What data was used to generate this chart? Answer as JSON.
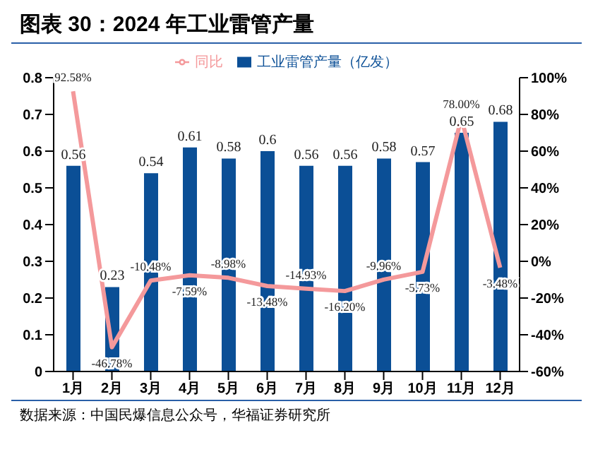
{
  "chart_data": {
    "type": "bar",
    "title": "图表 30：2024 年工业雷管产量",
    "categories": [
      "1月",
      "2月",
      "3月",
      "4月",
      "5月",
      "6月",
      "7月",
      "8月",
      "9月",
      "10月",
      "11月",
      "12月"
    ],
    "series": [
      {
        "name": "工业雷管产量（亿发）",
        "color": "#0b4f96",
        "values": [
          0.56,
          0.23,
          0.54,
          0.61,
          0.58,
          0.6,
          0.56,
          0.56,
          0.58,
          0.57,
          0.65,
          0.68
        ],
        "value_labels": [
          "0.56",
          "0.23",
          "0.54",
          "0.61",
          "0.58",
          "0.6",
          "0.56",
          "0.56",
          "0.58",
          "0.57",
          "0.65",
          "0.68"
        ]
      },
      {
        "name": "同比",
        "type": "line",
        "axis": "y2",
        "color": "#f4999b",
        "values": [
          92.58,
          -46.78,
          -10.48,
          -7.59,
          -8.98,
          -13.48,
          -14.93,
          -16.2,
          -9.96,
          -5.73,
          78.0,
          -3.48
        ],
        "value_labels": [
          "92.58%",
          "-46.78%",
          "-10.48%",
          "-7.59%",
          "-8.98%",
          "-13.48%",
          "-14.93%",
          "-16.20%",
          "-9.96%",
          "-5.73%",
          "78.00%",
          "-3.48%"
        ]
      }
    ],
    "ylim": [
      0,
      0.8
    ],
    "yticks": [
      0,
      0.1,
      0.2,
      0.3,
      0.4,
      0.5,
      0.6,
      0.7,
      0.8
    ],
    "y2lim": [
      -60,
      100
    ],
    "y2ticks": [
      {
        "value": -60,
        "label": "-60%"
      },
      {
        "value": -40,
        "label": "-40%"
      },
      {
        "value": -20,
        "label": "-20%"
      },
      {
        "value": 0,
        "label": "0%"
      },
      {
        "value": 20,
        "label": "20%"
      },
      {
        "value": 40,
        "label": "40%"
      },
      {
        "value": 60,
        "label": "60%"
      },
      {
        "value": 80,
        "label": "80%"
      },
      {
        "value": 100,
        "label": "100%"
      }
    ],
    "legend": "top",
    "grid": false,
    "marker": "none",
    "line_style": "solid",
    "annotations": [
      "数据来源：中国民爆信息公众号，华福证券研究所"
    ]
  }
}
